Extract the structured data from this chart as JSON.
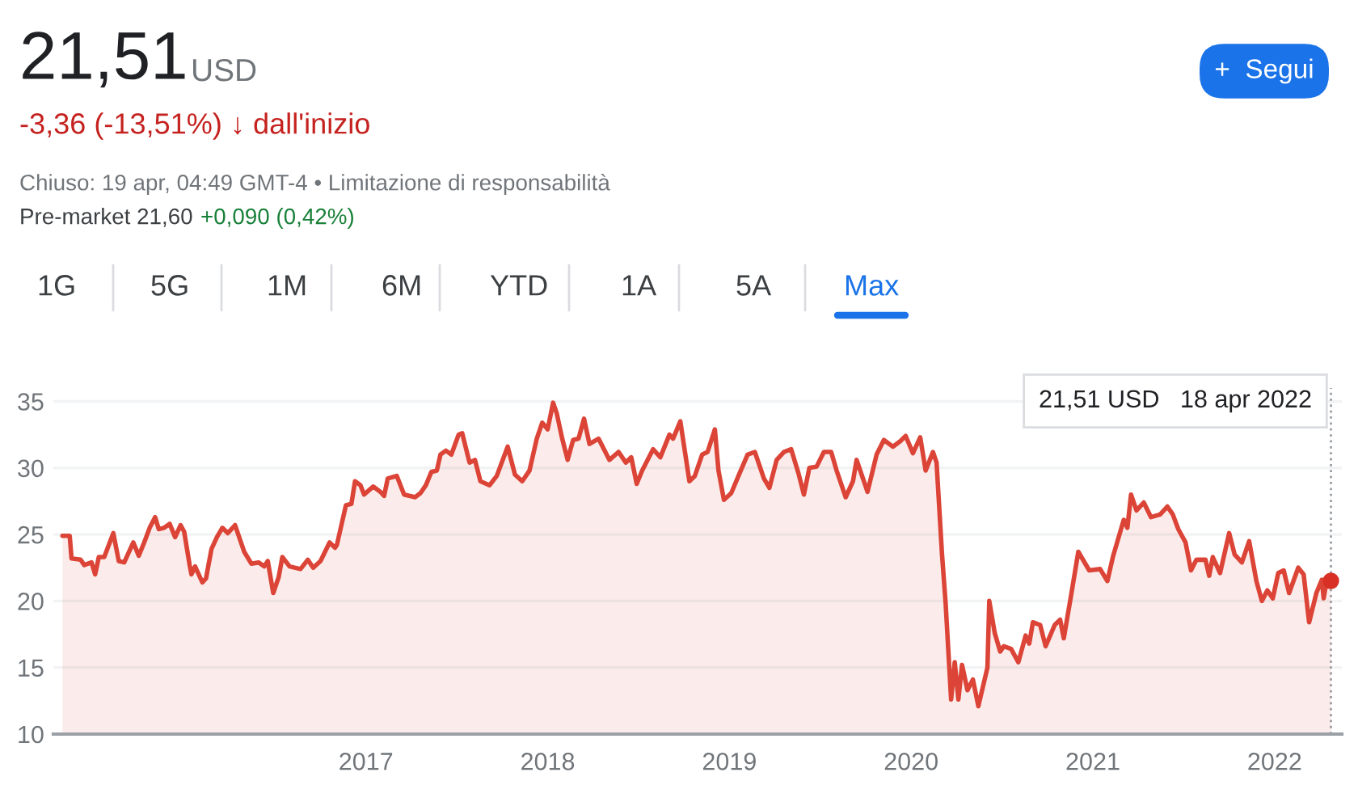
{
  "chart_data": {
    "type": "area",
    "title": "21,51",
    "subtitle": "USD",
    "x": [
      2015.33,
      2015.37,
      2015.38,
      2015.43,
      2015.45,
      2015.49,
      2015.51,
      2015.53,
      2015.56,
      2015.61,
      2015.64,
      2015.67,
      2015.72,
      2015.75,
      2015.78,
      2015.81,
      2015.84,
      2015.86,
      2015.89,
      2015.92,
      2015.95,
      2015.98,
      2016.0,
      2016.03,
      2016.04,
      2016.06,
      2016.1,
      2016.12,
      2016.15,
      2016.18,
      2016.21,
      2016.24,
      2016.28,
      2016.33,
      2016.37,
      2016.41,
      2016.44,
      2016.46,
      2016.49,
      2016.52,
      2016.54,
      2016.58,
      2016.64,
      2016.68,
      2016.71,
      2016.75,
      2016.8,
      2016.83,
      2016.84,
      2016.89,
      2016.92,
      2016.94,
      2016.97,
      2016.99,
      2017.04,
      2017.08,
      2017.1,
      2017.12,
      2017.17,
      2017.21,
      2017.27,
      2017.3,
      2017.33,
      2017.36,
      2017.39,
      2017.41,
      2017.44,
      2017.47,
      2017.51,
      2017.53,
      2017.57,
      2017.6,
      2017.63,
      2017.68,
      2017.72,
      2017.78,
      2017.82,
      2017.86,
      2017.9,
      2017.94,
      2017.97,
      2018.0,
      2018.03,
      2018.05,
      2018.08,
      2018.11,
      2018.14,
      2018.17,
      2018.2,
      2018.23,
      2018.28,
      2018.34,
      2018.39,
      2018.43,
      2018.46,
      2018.49,
      2018.52,
      2018.58,
      2018.62,
      2018.67,
      2018.69,
      2018.73,
      2018.78,
      2018.81,
      2018.85,
      2018.88,
      2018.92,
      2018.94,
      2018.97,
      2019.01,
      2019.05,
      2019.1,
      2019.14,
      2019.19,
      2019.22,
      2019.26,
      2019.3,
      2019.34,
      2019.38,
      2019.41,
      2019.44,
      2019.48,
      2019.52,
      2019.56,
      2019.59,
      2019.64,
      2019.68,
      2019.7,
      2019.76,
      2019.81,
      2019.85,
      2019.9,
      2019.94,
      2019.97,
      2020.01,
      2020.05,
      2020.08,
      2020.12,
      2020.14,
      2020.17,
      2020.19,
      2020.22,
      2020.24,
      2020.26,
      2020.28,
      2020.31,
      2020.34,
      2020.37,
      2020.42,
      2020.43,
      2020.46,
      2020.49,
      2020.51,
      2020.55,
      2020.59,
      2020.63,
      2020.65,
      2020.67,
      2020.71,
      2020.74,
      2020.79,
      2020.82,
      2020.84,
      2020.88,
      2020.92,
      2020.98,
      2021.04,
      2021.08,
      2021.11,
      2021.17,
      2021.19,
      2021.21,
      2021.24,
      2021.28,
      2021.32,
      2021.37,
      2021.41,
      2021.44,
      2021.47,
      2021.51,
      2021.54,
      2021.57,
      2021.62,
      2021.64,
      2021.66,
      2021.7,
      2021.75,
      2021.78,
      2021.82,
      2021.86,
      2021.9,
      2021.93,
      2021.96,
      2021.99,
      2022.02,
      2022.05,
      2022.08,
      2022.13,
      2022.16,
      2022.19,
      2022.23,
      2022.26,
      2022.27,
      2022.29,
      2022.31
    ],
    "series": [
      {
        "color": "#db4437",
        "values": [
          24.9,
          24.9,
          23.2,
          23.1,
          22.7,
          22.9,
          22.0,
          23.3,
          23.3,
          25.1,
          23.0,
          22.9,
          24.4,
          23.4,
          24.4,
          25.5,
          26.3,
          25.4,
          25.5,
          25.8,
          24.8,
          25.7,
          25.2,
          22.7,
          22.0,
          22.6,
          21.4,
          21.7,
          23.9,
          24.8,
          25.5,
          25.1,
          25.7,
          23.7,
          22.8,
          22.9,
          22.6,
          23.0,
          20.6,
          21.8,
          23.3,
          22.6,
          22.4,
          23.1,
          22.5,
          23.0,
          24.4,
          24.0,
          24.2,
          27.2,
          27.3,
          29.0,
          28.7,
          28.0,
          28.6,
          28.2,
          27.9,
          29.2,
          29.4,
          28.0,
          27.8,
          28.1,
          28.7,
          29.7,
          29.8,
          31.0,
          31.3,
          31.0,
          32.5,
          32.6,
          30.4,
          30.6,
          29.0,
          28.7,
          29.4,
          31.6,
          29.5,
          29.0,
          29.8,
          32.2,
          33.4,
          32.9,
          34.9,
          34.1,
          32.2,
          30.6,
          32.1,
          32.2,
          33.7,
          31.8,
          32.2,
          30.6,
          31.2,
          30.4,
          30.8,
          28.8,
          29.8,
          31.4,
          30.8,
          32.5,
          32.2,
          33.5,
          29.0,
          29.4,
          31.0,
          31.2,
          32.9,
          29.8,
          27.6,
          28.1,
          29.4,
          31.0,
          31.2,
          29.2,
          28.5,
          30.6,
          31.2,
          31.4,
          29.6,
          28.0,
          30.0,
          30.1,
          31.2,
          31.2,
          29.8,
          27.8,
          29.0,
          30.6,
          28.2,
          31.0,
          32.1,
          31.6,
          32.0,
          32.4,
          31.1,
          32.3,
          29.8,
          31.2,
          30.4,
          23.5,
          19.8,
          12.6,
          15.4,
          12.6,
          15.2,
          13.3,
          14.1,
          12.1,
          15.0,
          20.0,
          17.6,
          16.2,
          16.6,
          16.4,
          15.4,
          17.4,
          16.8,
          18.4,
          18.2,
          16.6,
          18.2,
          18.6,
          17.2,
          20.4,
          23.7,
          22.3,
          22.4,
          21.5,
          23.3,
          26.1,
          25.5,
          28.0,
          26.8,
          27.4,
          26.3,
          26.5,
          27.1,
          26.5,
          25.4,
          24.4,
          22.3,
          23.1,
          23.1,
          21.9,
          23.3,
          22.1,
          25.1,
          23.5,
          22.9,
          24.5,
          21.5,
          20.0,
          20.8,
          20.2,
          22.1,
          22.3,
          20.6,
          22.5,
          22.0,
          18.4,
          20.6,
          21.6,
          20.2,
          21.8,
          21.51
        ]
      },
      {
        "type": "scatter",
        "color": "#d93025",
        "marker": "circle",
        "x": [
          2022.31
        ],
        "values": [
          21.51
        ]
      }
    ],
    "xlim": [
      2015.28,
      2022.37
    ],
    "ylim": [
      10,
      36
    ],
    "xticks": [
      2017,
      2018,
      2019,
      2020,
      2021,
      2022
    ],
    "yticks": [
      10,
      15,
      20,
      25,
      30,
      35
    ],
    "grid": "y",
    "ref_lines": [
      {
        "axis": "x",
        "value": 2022.31,
        "color": "#9aa0a6",
        "line_style": "dotted"
      }
    ],
    "annotations": [
      "-3,36 (-13,51%) ↓ dall'inizio",
      "Chiuso: 19 apr, 04:49 GMT-4 • Limitazione di responsabilità",
      "Pre-market 21,60",
      "+0,090 (0,42%)",
      "+  Segui",
      "1G",
      "5G",
      "1M",
      "6M",
      "YTD",
      "1A",
      "5A",
      "Max",
      "21,51 USD   18 apr 2022"
    ]
  }
}
